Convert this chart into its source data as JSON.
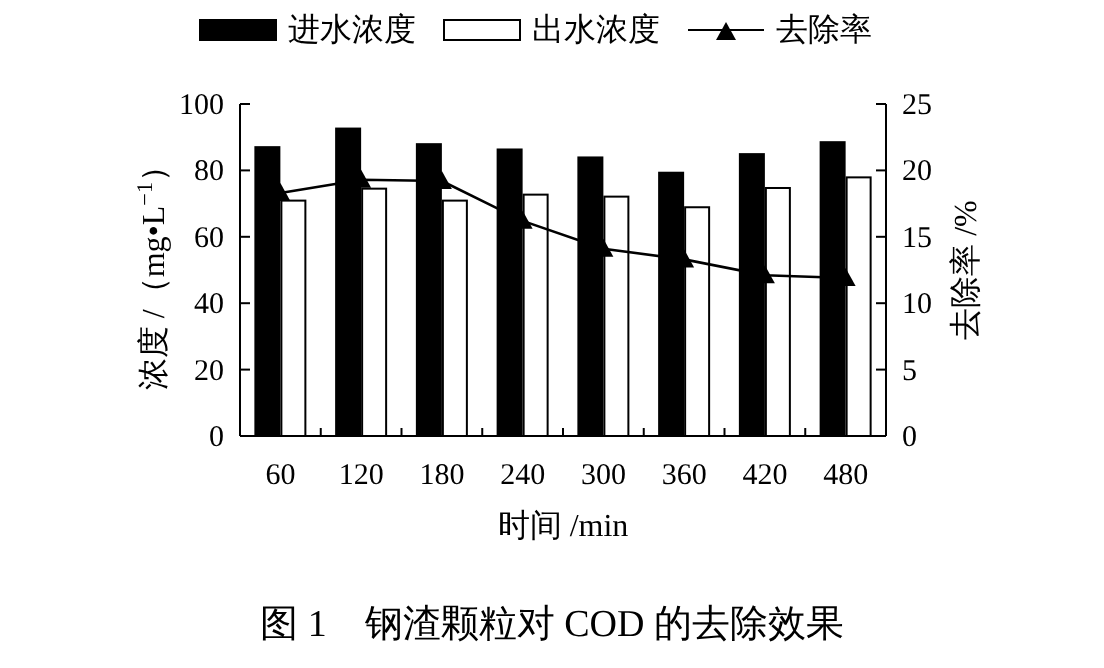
{
  "chart_data": {
    "type": "bar",
    "title": "图 1　钢渣颗粒对 COD 的去除效果",
    "categories": [
      "60",
      "120",
      "180",
      "240",
      "300",
      "360",
      "420",
      "480"
    ],
    "xlabel": "时间 /min",
    "ylabel": "浓度 /（mg•L$^{−1}$）",
    "y2label": "去除率 /%",
    "series": [
      {
        "name": "进水浓度",
        "color": "#000000",
        "values": [
          87.0,
          92.6,
          87.9,
          86.3,
          83.9,
          79.3,
          84.9,
          88.5
        ]
      },
      {
        "name": "出水浓度",
        "color": "#ffffff",
        "values": [
          70.9,
          74.5,
          70.9,
          72.7,
          72.1,
          68.9,
          74.7,
          77.9
        ]
      },
      {
        "name": "去除率",
        "type": "line",
        "axis": "y2",
        "color": "#000000",
        "marker": "triangle",
        "values": [
          18.3,
          19.3,
          19.2,
          16.2,
          14.1,
          13.3,
          12.1,
          11.9
        ]
      }
    ],
    "ylim": [
      0,
      100
    ],
    "yticks": [
      0,
      20,
      40,
      60,
      80,
      100
    ],
    "y2lim": [
      0,
      25
    ],
    "y2ticks": [
      0,
      5,
      10,
      15,
      20,
      25
    ],
    "legend": "top",
    "grid": false
  }
}
